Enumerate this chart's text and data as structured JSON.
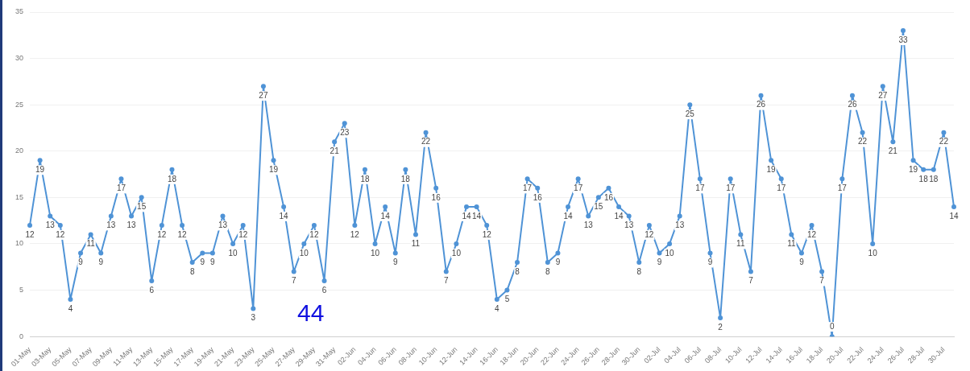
{
  "chart_data": {
    "type": "line",
    "categories": [
      "01-May",
      null,
      "03-May",
      null,
      "05-May",
      null,
      "07-May",
      null,
      "09-May",
      null,
      "11-May",
      null,
      "13-May",
      null,
      "15-May",
      null,
      "17-May",
      null,
      "19-May",
      null,
      "21-May",
      null,
      "23-May",
      null,
      "25-May",
      null,
      "27-May",
      null,
      "29-May",
      null,
      "31-May",
      null,
      "02-Jun",
      null,
      "04-Jun",
      null,
      "06-Jun",
      null,
      "08-Jun",
      null,
      "10-Jun",
      null,
      "12-Jun",
      null,
      "14-Jun",
      null,
      "16-Jun",
      null,
      "18-Jun",
      null,
      "20-Jun",
      null,
      "22-Jun",
      null,
      "24-Jun",
      null,
      "26-Jun",
      null,
      "28-Jun",
      null,
      "30-Jun",
      null,
      "02-Jul",
      null,
      "04-Jul",
      null,
      "06-Jul",
      null,
      "08-Jul",
      null,
      "10-Jul",
      null,
      "12-Jul",
      null,
      "14-Jul",
      null,
      "16-Jul",
      null,
      "18-Jul",
      null,
      "20-Jul",
      null,
      "22-Jul",
      null,
      "24-Jul",
      null,
      "26-Jul",
      null,
      "28-Jul",
      null,
      "30-Jul",
      null
    ],
    "series": [
      {
        "color": "#4f93d6",
        "values": [
          12,
          19,
          13,
          12,
          4,
          9,
          11,
          9,
          13,
          17,
          13,
          15,
          6,
          12,
          18,
          12,
          8,
          9,
          9,
          13,
          10,
          12,
          3,
          27,
          19,
          14,
          7,
          10,
          12,
          6,
          21,
          23,
          12,
          18,
          10,
          14,
          9,
          18,
          11,
          22,
          16,
          7,
          10,
          14,
          14,
          12,
          4,
          5,
          8,
          17,
          16,
          8,
          9,
          14,
          17,
          13,
          15,
          16,
          14,
          13,
          8,
          12,
          9,
          10,
          13,
          25,
          17,
          9,
          2,
          17,
          11,
          7,
          26,
          19,
          17,
          11,
          9,
          12,
          7,
          0,
          17,
          26,
          22,
          10,
          27,
          21,
          33,
          19,
          18,
          18,
          22,
          14
        ]
      }
    ],
    "ylim": [
      0,
      35
    ],
    "yticks": [
      0,
      5,
      10,
      15,
      20,
      25,
      30,
      35
    ],
    "grid": "y",
    "legend": false,
    "marker": "circle",
    "line_style": "solid",
    "data_labels": true,
    "annotations": [
      "44"
    ]
  }
}
